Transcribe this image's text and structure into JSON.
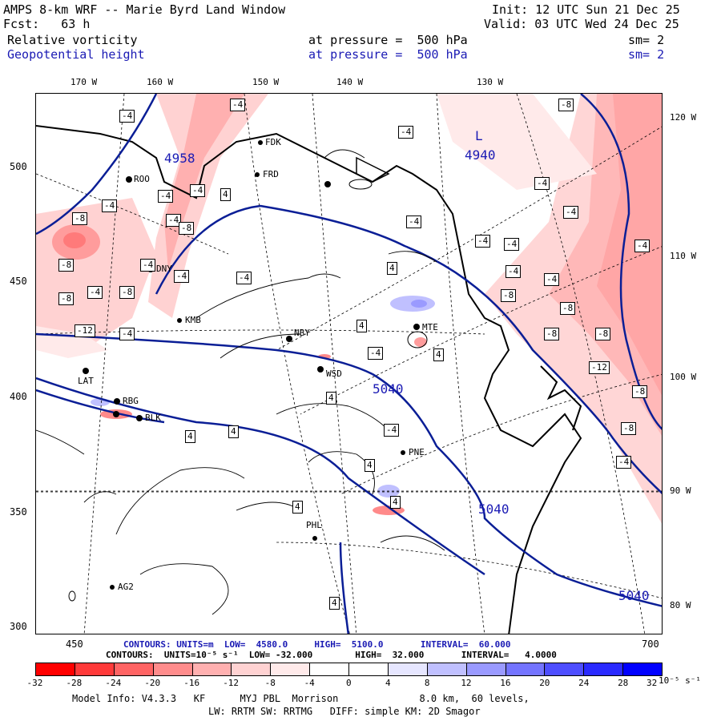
{
  "header": {
    "title": "AMPS 8-km WRF -- Marie Byrd Land Window",
    "fcst": "Fcst:   63 h",
    "init": "Init: 12 UTC Sun 21 Dec 25",
    "valid": "Valid: 03 UTC Wed 24 Dec 25",
    "field1": {
      "name": "Relative vorticity",
      "pressure": "at pressure =  500 hPa",
      "sm": "sm= 2"
    },
    "field2": {
      "name": "Geopotential height",
      "pressure": "at pressure =  500 hPa",
      "sm": "sm= 2"
    }
  },
  "top_lon_labels": [
    "170 W",
    "160 W",
    "150 W",
    "140 W",
    "130 W"
  ],
  "right_lon_labels": [
    "120 W",
    "110 W",
    "100 W",
    "90 W",
    "80 W"
  ],
  "left_axis": [
    "500",
    "450",
    "400",
    "350",
    "300"
  ],
  "bottom_axis": [
    "450",
    "700"
  ],
  "stations": [
    "FDK",
    "FRD",
    "ROO",
    "DNY",
    "KMB",
    "NBY",
    "MTE",
    "WSD",
    "PNE",
    "PHL",
    "AG2",
    "RBG",
    "LAT",
    "BLK"
  ],
  "contour_labels": {
    "height": [
      "4958",
      "4940",
      "5040",
      "5040",
      "5040"
    ],
    "low_label": "L",
    "vort_neg": "-4",
    "vort_neg8": "-8",
    "vort_neg12": "-12",
    "vort_pos": "4"
  },
  "footer": {
    "height_line": "CONTOURS: UNITS=m  LOW=  4580.0     HIGH=  5100.0       INTERVAL=  60.000",
    "vort_line": "CONTOURS:  UNITS=10⁻⁵ s⁻¹  LOW= -32.000        HIGH=  32.000       INTERVAL=   4.0000",
    "model_info": "Model Info: V4.3.3   KF      MYJ PBL  Morrison              8.0 km,  60 levels,",
    "model_info2": "LW: RRTM SW: RRTMG   DIFF: simple KM: 2D Smagor"
  },
  "colorbar": {
    "colors": [
      "#ff0000",
      "#ff3a3a",
      "#ff6464",
      "#ff8c8c",
      "#ffb0b0",
      "#ffd2d2",
      "#ffeaea",
      "#ffffff",
      "#ffffff",
      "#e6e6ff",
      "#c0c0ff",
      "#9a9aff",
      "#7474ff",
      "#4e4eff",
      "#2a2aff",
      "#0000ff"
    ],
    "ticks": [
      "-32",
      "-28",
      "-24",
      "-20",
      "-16",
      "-12",
      "-8",
      "-4",
      "0",
      "4",
      "8",
      "12",
      "16",
      "20",
      "24",
      "28",
      "32"
    ],
    "unit": "10⁻⁵ s⁻¹"
  }
}
